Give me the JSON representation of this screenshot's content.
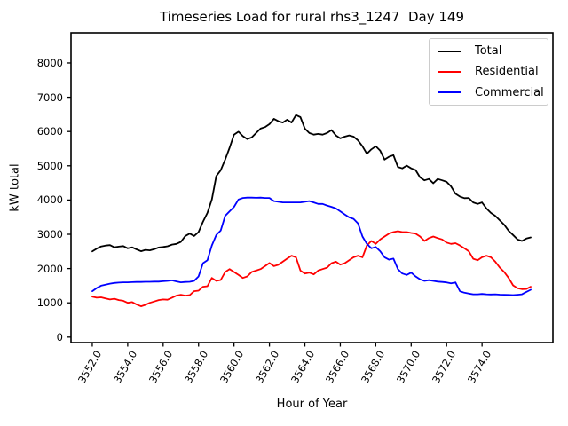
{
  "chart_data": {
    "type": "line",
    "title": "Timeseries Load for rural rhs3_1247  Day 149",
    "xlabel": "Hour of Year",
    "ylabel": "kW total",
    "grid": false,
    "legend_position": "upper right",
    "xlim": [
      3550.8,
      3578.0
    ],
    "ylim": [
      -160,
      8880
    ],
    "xticks": {
      "values": [
        3552,
        3554,
        3556,
        3558,
        3560,
        3562,
        3564,
        3566,
        3568,
        3570,
        3572,
        3574
      ],
      "labels": [
        "3552.0",
        "3554.0",
        "3556.0",
        "3558.0",
        "3560.0",
        "3562.0",
        "3564.0",
        "3566.0",
        "3568.0",
        "3570.0",
        "3572.0",
        "3574.0"
      ]
    },
    "yticks": {
      "values": [
        0,
        1000,
        2000,
        3000,
        4000,
        5000,
        6000,
        7000,
        8000
      ],
      "labels": [
        "0",
        "1000",
        "2000",
        "3000",
        "4000",
        "5000",
        "6000",
        "7000",
        "8000"
      ]
    },
    "x": [
      3552.0,
      3552.25,
      3552.5,
      3552.75,
      3553.0,
      3553.25,
      3553.5,
      3553.75,
      3554.0,
      3554.25,
      3554.5,
      3554.75,
      3555.0,
      3555.25,
      3555.5,
      3555.75,
      3556.0,
      3556.25,
      3556.5,
      3556.75,
      3557.0,
      3557.25,
      3557.5,
      3557.75,
      3558.0,
      3558.25,
      3558.5,
      3558.75,
      3559.0,
      3559.25,
      3559.5,
      3559.75,
      3560.0,
      3560.25,
      3560.5,
      3560.75,
      3561.0,
      3561.25,
      3561.5,
      3561.75,
      3562.0,
      3562.25,
      3562.5,
      3562.75,
      3563.0,
      3563.25,
      3563.5,
      3563.75,
      3564.0,
      3564.25,
      3564.5,
      3564.75,
      3565.0,
      3565.25,
      3565.5,
      3565.75,
      3566.0,
      3566.25,
      3566.5,
      3566.75,
      3567.0,
      3567.25,
      3567.5,
      3567.75,
      3568.0,
      3568.25,
      3568.5,
      3568.75,
      3569.0,
      3569.25,
      3569.5,
      3569.75,
      3570.0,
      3570.25,
      3570.5,
      3570.75,
      3571.0,
      3571.25,
      3571.5,
      3571.75,
      3572.0,
      3572.25,
      3572.5,
      3572.75,
      3573.0,
      3573.25,
      3573.5,
      3573.75,
      3574.0,
      3574.25,
      3574.5,
      3574.75,
      3575.0,
      3575.25,
      3575.5,
      3575.75,
      3576.0,
      3576.25,
      3576.5,
      3576.75
    ],
    "series": [
      {
        "name": "Total",
        "color": "#000000",
        "values": [
          2500,
          2580,
          2645,
          2670,
          2685,
          2620,
          2640,
          2655,
          2590,
          2620,
          2560,
          2505,
          2545,
          2530,
          2565,
          2615,
          2630,
          2650,
          2700,
          2720,
          2780,
          2950,
          3020,
          2950,
          3065,
          3365,
          3625,
          4015,
          4700,
          4870,
          5180,
          5525,
          5910,
          5995,
          5865,
          5780,
          5825,
          5955,
          6085,
          6130,
          6215,
          6370,
          6300,
          6260,
          6345,
          6260,
          6480,
          6420,
          6085,
          5955,
          5910,
          5930,
          5910,
          5955,
          6040,
          5885,
          5800,
          5850,
          5885,
          5850,
          5740,
          5570,
          5350,
          5480,
          5570,
          5440,
          5180,
          5265,
          5310,
          4965,
          4925,
          5005,
          4925,
          4875,
          4660,
          4575,
          4615,
          4490,
          4615,
          4575,
          4530,
          4400,
          4185,
          4100,
          4055,
          4060,
          3930,
          3885,
          3930,
          3755,
          3625,
          3540,
          3410,
          3280,
          3105,
          2980,
          2850,
          2805,
          2875,
          2910
        ]
      },
      {
        "name": "Residential",
        "color": "#ff0000",
        "values": [
          1180,
          1150,
          1160,
          1130,
          1100,
          1120,
          1080,
          1060,
          1000,
          1020,
          950,
          900,
          940,
          1000,
          1040,
          1080,
          1100,
          1090,
          1150,
          1210,
          1235,
          1210,
          1225,
          1340,
          1355,
          1470,
          1485,
          1725,
          1640,
          1665,
          1900,
          1985,
          1900,
          1815,
          1725,
          1770,
          1900,
          1940,
          1985,
          2070,
          2160,
          2070,
          2110,
          2200,
          2290,
          2375,
          2330,
          1940,
          1855,
          1880,
          1830,
          1940,
          1985,
          2025,
          2155,
          2200,
          2115,
          2155,
          2245,
          2330,
          2375,
          2330,
          2675,
          2805,
          2720,
          2850,
          2935,
          3020,
          3065,
          3090,
          3065,
          3065,
          3040,
          3020,
          2935,
          2805,
          2890,
          2935,
          2890,
          2850,
          2760,
          2720,
          2740,
          2675,
          2590,
          2505,
          2285,
          2245,
          2330,
          2375,
          2330,
          2200,
          2030,
          1900,
          1725,
          1510,
          1425,
          1400,
          1405,
          1470
        ]
      },
      {
        "name": "Commercial",
        "color": "#0000ff",
        "values": [
          1340,
          1430,
          1500,
          1530,
          1560,
          1580,
          1590,
          1600,
          1600,
          1605,
          1610,
          1610,
          1615,
          1615,
          1620,
          1620,
          1630,
          1640,
          1655,
          1625,
          1600,
          1610,
          1615,
          1640,
          1770,
          2155,
          2245,
          2675,
          2980,
          3110,
          3540,
          3670,
          3800,
          4015,
          4060,
          4070,
          4070,
          4065,
          4070,
          4060,
          4060,
          3970,
          3950,
          3930,
          3930,
          3930,
          3930,
          3930,
          3950,
          3970,
          3930,
          3885,
          3885,
          3840,
          3800,
          3755,
          3670,
          3580,
          3495,
          3450,
          3320,
          2935,
          2720,
          2590,
          2630,
          2505,
          2330,
          2260,
          2290,
          1985,
          1855,
          1815,
          1880,
          1770,
          1685,
          1640,
          1660,
          1640,
          1620,
          1610,
          1595,
          1570,
          1595,
          1340,
          1295,
          1270,
          1250,
          1250,
          1260,
          1250,
          1245,
          1250,
          1240,
          1235,
          1230,
          1225,
          1235,
          1250,
          1320,
          1380
        ]
      }
    ]
  }
}
